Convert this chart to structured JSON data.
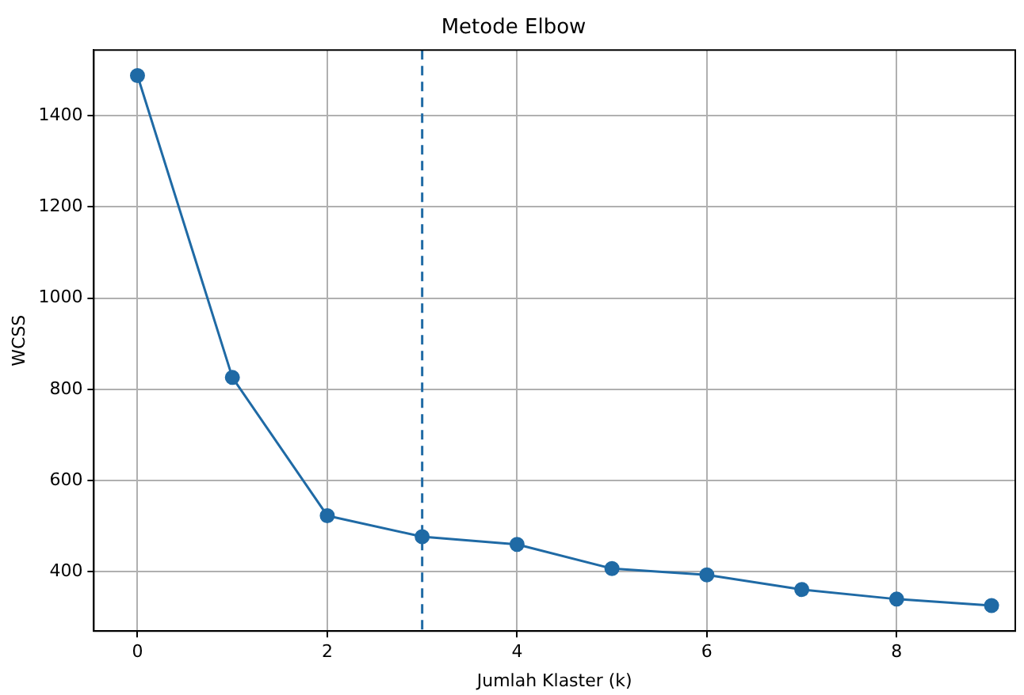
{
  "chart_data": {
    "type": "line",
    "title": "Metode Elbow",
    "xlabel": "Jumlah Klaster (k)",
    "ylabel": "WCSS",
    "x": [
      0,
      1,
      2,
      3,
      4,
      5,
      6,
      7,
      8,
      9
    ],
    "series": [
      {
        "color": "#1f6aa5",
        "values": [
          1488,
          826,
          523,
          477,
          460,
          407,
          393,
          361,
          340,
          326
        ]
      }
    ],
    "xlim": [
      -0.46,
      9.25
    ],
    "xticks": [
      0,
      2,
      4,
      6,
      8
    ],
    "ylim": [
      270,
      1544
    ],
    "yticks": [
      400,
      600,
      800,
      1000,
      1200,
      1400
    ],
    "ref_lines": [
      {
        "axis": "x",
        "value": 3,
        "color": "#1f6aa5",
        "line_style": "dashed"
      }
    ],
    "grid": true,
    "legend": false,
    "marker": "circle",
    "line_style": "solid"
  }
}
